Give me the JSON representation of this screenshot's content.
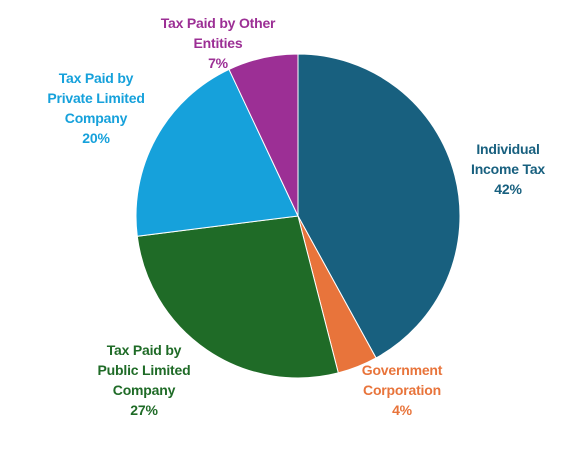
{
  "chart_data": {
    "type": "pie",
    "slices": [
      {
        "label_lines": [
          "Individual",
          "Income Tax"
        ],
        "percent_label": "42%",
        "value": 42,
        "color": "#18607f"
      },
      {
        "label_lines": [
          "Government",
          "Corporation"
        ],
        "percent_label": "4%",
        "value": 4,
        "color": "#e8743b"
      },
      {
        "label_lines": [
          "Tax Paid by",
          "Public Limited",
          "Company"
        ],
        "percent_label": "27%",
        "value": 27,
        "color": "#1f6b27"
      },
      {
        "label_lines": [
          "Tax Paid by",
          "Private Limited",
          "Company"
        ],
        "percent_label": "20%",
        "value": 20,
        "color": "#16a1db"
      },
      {
        "label_lines": [
          "Tax Paid by Other",
          "Entities"
        ],
        "percent_label": "7%",
        "value": 7,
        "color": "#9c2f95"
      }
    ],
    "start": "12 o'clock",
    "direction": "clockwise",
    "title": "",
    "legend": "none"
  }
}
